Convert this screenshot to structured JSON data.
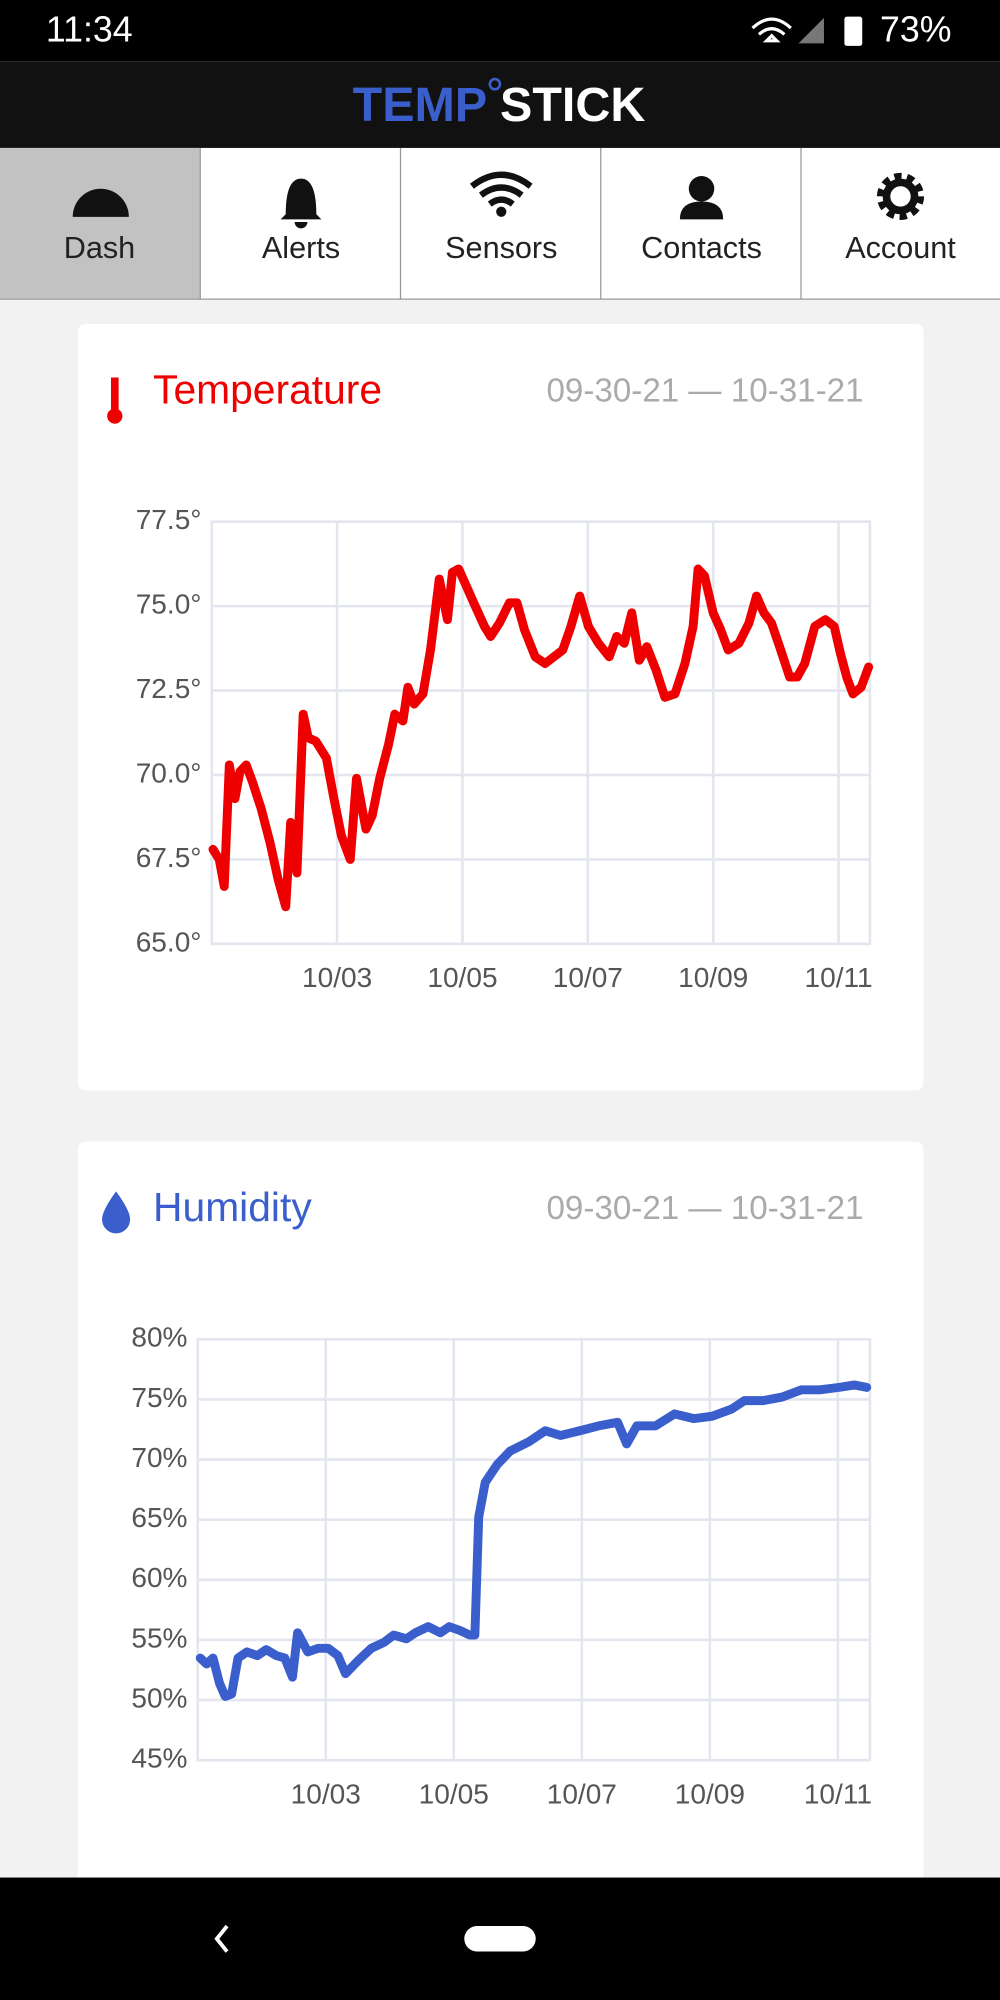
{
  "status_bar": {
    "time": "11:34",
    "battery": "73%"
  },
  "logo": {
    "left": "TEMP",
    "right": "STICK"
  },
  "tabs": [
    "Dash",
    "Alerts",
    "Sensors",
    "Contacts",
    "Account"
  ],
  "chart_data": [
    {
      "type": "line",
      "title": "Temperature",
      "subtitle": "09-30-21 — 10-31-21",
      "color": "#ee0000",
      "x": [
        1.02,
        1.12,
        1.2,
        1.28,
        1.37,
        1.45,
        1.55,
        1.65,
        1.79,
        1.93,
        2.06,
        2.18,
        2.26,
        2.36,
        2.46,
        2.54,
        2.66,
        2.83,
        2.95,
        3.07,
        3.21,
        3.31,
        3.46,
        3.56,
        3.68,
        3.82,
        3.92,
        4.05,
        4.13,
        4.23,
        4.37,
        4.49,
        4.63,
        4.76,
        4.84,
        4.94,
        5.06,
        5.18,
        5.35,
        5.45,
        5.59,
        5.75,
        5.87,
        5.99,
        6.16,
        6.32,
        6.46,
        6.6,
        6.73,
        6.87,
        7.01,
        7.17,
        7.34,
        7.46,
        7.58,
        7.7,
        7.82,
        7.94,
        8.09,
        8.23,
        8.39,
        8.55,
        8.68,
        8.76,
        8.86,
        9.0,
        9.12,
        9.24,
        9.41,
        9.57,
        9.69,
        9.81,
        9.93,
        10.06,
        10.22,
        10.34,
        10.46,
        10.62,
        10.79,
        10.93,
        11.03,
        11.13,
        11.23,
        11.36,
        11.48
      ],
      "values": [
        67.8,
        67.5,
        66.7,
        70.3,
        69.3,
        70.1,
        70.3,
        69.8,
        69.0,
        68.0,
        66.9,
        66.1,
        68.6,
        67.1,
        71.8,
        71.1,
        71.0,
        70.5,
        69.3,
        68.2,
        67.5,
        69.9,
        68.4,
        68.8,
        69.9,
        70.9,
        71.8,
        71.6,
        72.6,
        72.1,
        72.4,
        73.7,
        75.8,
        74.6,
        76.0,
        76.1,
        75.6,
        75.1,
        74.4,
        74.1,
        74.5,
        75.1,
        75.1,
        74.3,
        73.5,
        73.3,
        73.5,
        73.7,
        74.4,
        75.3,
        74.4,
        73.9,
        73.5,
        74.1,
        73.9,
        74.8,
        73.4,
        73.8,
        73.1,
        72.3,
        72.4,
        73.3,
        74.4,
        76.1,
        75.9,
        74.8,
        74.3,
        73.7,
        73.9,
        74.5,
        75.3,
        74.8,
        74.5,
        73.8,
        72.9,
        72.9,
        73.3,
        74.4,
        74.6,
        74.4,
        73.6,
        72.9,
        72.4,
        72.6,
        73.2
      ],
      "xlim": [
        1,
        11.5
      ],
      "xticks": [
        {
          "value": 3,
          "label": "10/03"
        },
        {
          "value": 5,
          "label": "10/05"
        },
        {
          "value": 7,
          "label": "10/07"
        },
        {
          "value": 9,
          "label": "10/09"
        },
        {
          "value": 11,
          "label": "10/11"
        }
      ],
      "ylim": [
        65,
        77.5
      ],
      "yticks": [
        {
          "value": 65,
          "label": "65.0°"
        },
        {
          "value": 67.5,
          "label": "67.5°"
        },
        {
          "value": 70,
          "label": "70.0°"
        },
        {
          "value": 72.5,
          "label": "72.5°"
        },
        {
          "value": 75,
          "label": "75.0°"
        },
        {
          "value": 77.5,
          "label": "77.5°"
        }
      ],
      "grid": true
    },
    {
      "type": "line",
      "title": "Humidity",
      "subtitle": "09-30-21 — 10-31-21",
      "color": "#3a5fcd",
      "x": [
        1.04,
        1.14,
        1.24,
        1.34,
        1.43,
        1.53,
        1.63,
        1.77,
        1.93,
        2.07,
        2.23,
        2.36,
        2.48,
        2.56,
        2.72,
        2.88,
        3.04,
        3.19,
        3.31,
        3.51,
        3.71,
        3.91,
        4.06,
        4.26,
        4.4,
        4.6,
        4.79,
        4.93,
        5.09,
        5.25,
        5.33,
        5.39,
        5.49,
        5.68,
        5.88,
        6.18,
        6.43,
        6.67,
        6.97,
        7.26,
        7.56,
        7.7,
        7.86,
        8.15,
        8.45,
        8.75,
        9.04,
        9.34,
        9.54,
        9.83,
        10.13,
        10.43,
        10.72,
        11.02,
        11.26,
        11.45
      ],
      "values": [
        53.5,
        53.0,
        53.5,
        51.4,
        50.3,
        50.5,
        53.5,
        54.0,
        53.7,
        54.2,
        53.7,
        53.5,
        51.9,
        55.6,
        54.0,
        54.3,
        54.3,
        53.7,
        52.2,
        53.3,
        54.3,
        54.8,
        55.4,
        55.1,
        55.6,
        56.1,
        55.6,
        56.1,
        55.8,
        55.4,
        55.4,
        65.2,
        68.1,
        69.6,
        70.7,
        71.5,
        72.4,
        72.0,
        72.4,
        72.8,
        73.1,
        71.3,
        72.8,
        72.8,
        73.8,
        73.4,
        73.6,
        74.2,
        74.9,
        74.9,
        75.2,
        75.8,
        75.8,
        76.0,
        76.2,
        76.0
      ],
      "xlim": [
        1,
        11.5
      ],
      "xticks": [
        {
          "value": 3,
          "label": "10/03"
        },
        {
          "value": 5,
          "label": "10/05"
        },
        {
          "value": 7,
          "label": "10/07"
        },
        {
          "value": 9,
          "label": "10/09"
        },
        {
          "value": 11,
          "label": "10/11"
        }
      ],
      "ylim": [
        45,
        80
      ],
      "yticks": [
        {
          "value": 45,
          "label": "45%"
        },
        {
          "value": 50,
          "label": "50%"
        },
        {
          "value": 55,
          "label": "55%"
        },
        {
          "value": 60,
          "label": "60%"
        },
        {
          "value": 65,
          "label": "65%"
        },
        {
          "value": 70,
          "label": "70%"
        },
        {
          "value": 75,
          "label": "75%"
        },
        {
          "value": 80,
          "label": "80%"
        }
      ],
      "grid": true
    }
  ]
}
